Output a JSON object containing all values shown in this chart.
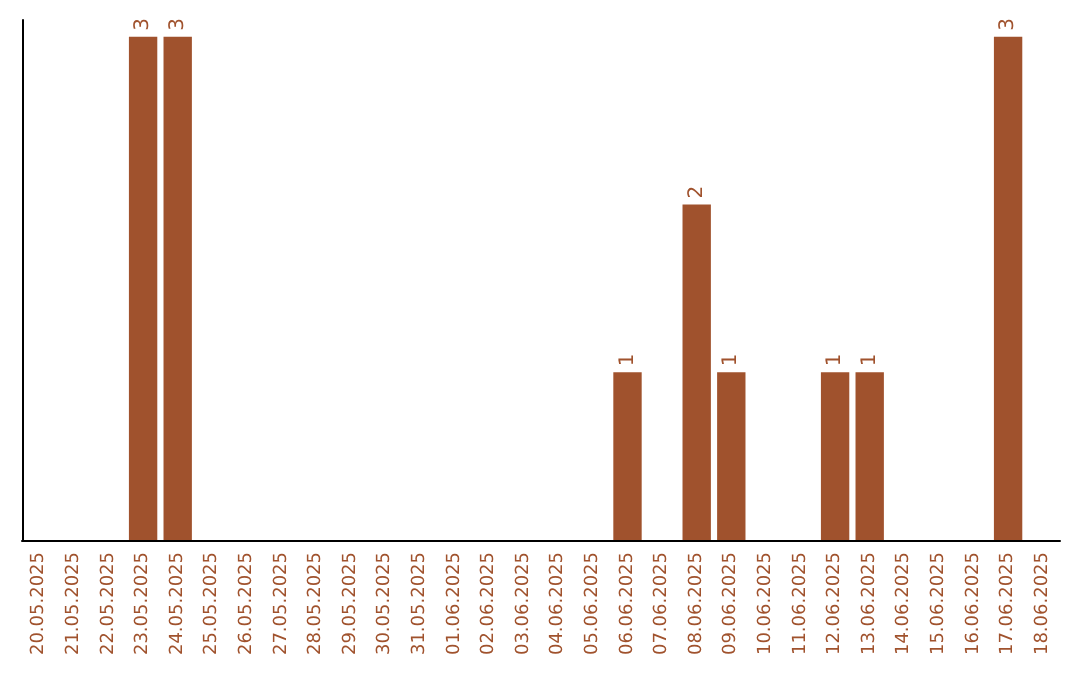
{
  "chart_data": {
    "type": "bar",
    "categories": [
      "20.05.2025",
      "21.05.2025",
      "22.05.2025",
      "23.05.2025",
      "24.05.2025",
      "25.05.2025",
      "26.05.2025",
      "27.05.2025",
      "28.05.2025",
      "29.05.2025",
      "30.05.2025",
      "31.05.2025",
      "01.06.2025",
      "02.06.2025",
      "03.06.2025",
      "04.06.2025",
      "05.06.2025",
      "06.06.2025",
      "07.06.2025",
      "08.06.2025",
      "09.06.2025",
      "10.06.2025",
      "11.06.2025",
      "12.06.2025",
      "13.06.2025",
      "14.06.2025",
      "15.06.2025",
      "16.06.2025",
      "17.06.2025",
      "18.06.2025"
    ],
    "values": [
      0,
      0,
      0,
      3,
      3,
      0,
      0,
      0,
      0,
      0,
      0,
      0,
      0,
      0,
      0,
      0,
      0,
      1,
      0,
      2,
      1,
      0,
      0,
      1,
      1,
      0,
      0,
      0,
      3,
      0
    ],
    "value_labels": [
      null,
      null,
      null,
      "3",
      "3",
      null,
      null,
      null,
      null,
      null,
      null,
      null,
      null,
      null,
      null,
      null,
      null,
      "1",
      null,
      "2",
      "1",
      null,
      null,
      "1",
      "1",
      null,
      null,
      null,
      "3",
      null
    ],
    "color": "#a0522d",
    "ylim": [
      0,
      3.1
    ],
    "tick_labels": "x",
    "grid": false
  }
}
